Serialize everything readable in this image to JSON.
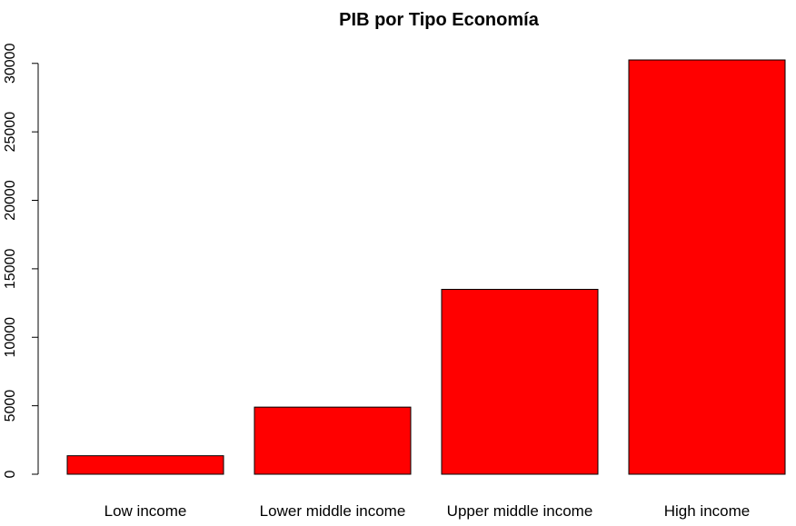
{
  "chart_data": {
    "type": "bar",
    "title": "PIB por Tipo Economía",
    "xlabel": "",
    "ylabel": "",
    "categories": [
      "Low income",
      "Lower middle income",
      "Upper middle income",
      "High income"
    ],
    "values": [
      1350,
      4900,
      13500,
      30250
    ],
    "ylim": [
      0,
      30250
    ],
    "yticks": [
      0,
      5000,
      10000,
      15000,
      20000,
      25000,
      30000
    ],
    "bar_color": "#ff0000",
    "grid": false,
    "legend": "none"
  }
}
